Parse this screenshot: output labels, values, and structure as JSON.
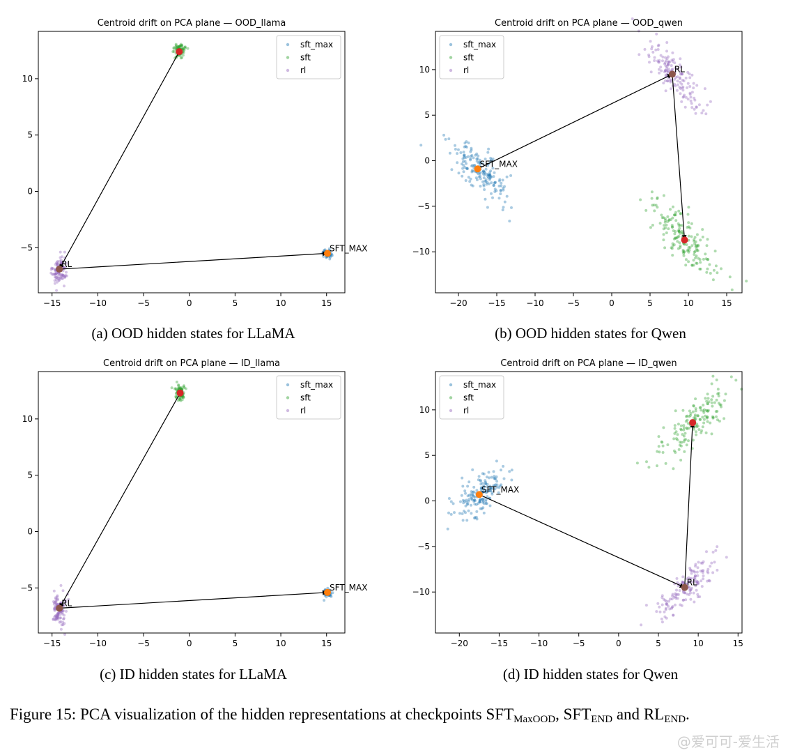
{
  "colors": {
    "sft_max": "#1f77b4",
    "sft": "#2ca02c",
    "rl": "#9467bd",
    "sft_max_centroid": "#ff7f0e",
    "sft_centroid": "#d62728",
    "rl_centroid": "#8c564b",
    "arrow": "#000000"
  },
  "captions": [
    "(a) OOD hidden states for LLaMA",
    "(b) OOD hidden states for Qwen",
    "(c) ID hidden states for LLaMA",
    "(d) ID hidden states for Qwen"
  ],
  "figure_caption": {
    "prefix": "Figure 15: PCA visualization of the hidden representations at checkpoints ",
    "t1": "SFT",
    "s1": "MaxOOD",
    "sep1": ", ",
    "t2": "SFT",
    "s2": "END",
    "sep2": " and ",
    "t3": "RL",
    "s3": "END",
    "end": "."
  },
  "watermark": "@爱可可-爱生活",
  "chart_data": [
    {
      "type": "scatter",
      "title": "Centroid drift on PCA plane — OOD_llama",
      "xlabel": "",
      "ylabel": "",
      "xlim": [
        -16.5,
        17
      ],
      "ylim": [
        -9,
        14.2
      ],
      "xticks": [
        -15,
        -10,
        -5,
        0,
        5,
        10,
        15
      ],
      "yticks": [
        -5,
        0,
        5,
        10
      ],
      "legend": {
        "position": "top-right",
        "entries": [
          "sft_max",
          "sft",
          "rl"
        ]
      },
      "series": [
        {
          "name": "sft_max",
          "cloud": {
            "center": [
              15.1,
              -5.5
            ],
            "spread": [
              0.25,
              0.2
            ],
            "angle": 0,
            "count": 60
          }
        },
        {
          "name": "sft",
          "cloud": {
            "center": [
              -1.1,
              12.5
            ],
            "spread": [
              0.3,
              0.3
            ],
            "angle": 0,
            "count": 80
          }
        },
        {
          "name": "rl",
          "cloud": {
            "center": [
              -14.2,
              -7.0
            ],
            "spread": [
              0.35,
              0.6
            ],
            "angle": 0,
            "count": 110
          }
        }
      ],
      "centroids": [
        {
          "series": "sft_max",
          "x": 15.1,
          "y": -5.5,
          "label": "SFT_MAX"
        },
        {
          "series": "sft",
          "x": -1.1,
          "y": 12.4,
          "label": ""
        },
        {
          "series": "rl",
          "x": -14.2,
          "y": -6.9,
          "label": "RL"
        }
      ],
      "path": [
        [
          -1.1,
          12.4
        ],
        [
          -14.2,
          -6.9
        ],
        [
          15.1,
          -5.5
        ]
      ]
    },
    {
      "type": "scatter",
      "title": "Centroid drift on PCA plane — OOD_qwen",
      "xlabel": "",
      "ylabel": "",
      "xlim": [
        -23,
        17
      ],
      "ylim": [
        -14.5,
        14.2
      ],
      "xticks": [
        -20,
        -15,
        -10,
        -5,
        0,
        5,
        10,
        15
      ],
      "yticks": [
        -10,
        -5,
        0,
        5,
        10
      ],
      "legend": {
        "position": "top-left",
        "entries": [
          "sft_max",
          "sft",
          "rl"
        ]
      },
      "series": [
        {
          "name": "sft_max",
          "cloud": {
            "center": [
              -17.5,
              -1.0
            ],
            "spread": [
              2.3,
              0.9
            ],
            "angle": -38,
            "count": 170
          }
        },
        {
          "name": "sft",
          "cloud": {
            "center": [
              9.3,
              -8.5
            ],
            "spread": [
              2.8,
              0.9
            ],
            "angle": -45,
            "count": 170
          }
        },
        {
          "name": "rl",
          "cloud": {
            "center": [
              8.2,
              9.4
            ],
            "spread": [
              2.6,
              0.8
            ],
            "angle": -45,
            "count": 150
          }
        }
      ],
      "centroids": [
        {
          "series": "sft_max",
          "x": -17.5,
          "y": -0.9,
          "label": "SFT_MAX"
        },
        {
          "series": "sft",
          "x": 9.5,
          "y": -8.7,
          "label": ""
        },
        {
          "series": "rl",
          "x": 7.9,
          "y": 9.5,
          "label": "RL"
        }
      ],
      "path": [
        [
          -17.5,
          -0.9
        ],
        [
          7.9,
          9.5
        ],
        [
          9.5,
          -8.7
        ]
      ]
    },
    {
      "type": "scatter",
      "title": "Centroid drift on PCA plane — ID_llama",
      "xlabel": "",
      "ylabel": "",
      "xlim": [
        -16.5,
        17
      ],
      "ylim": [
        -9,
        14.2
      ],
      "xticks": [
        -15,
        -10,
        -5,
        0,
        5,
        10,
        15
      ],
      "yticks": [
        -5,
        0,
        5,
        10
      ],
      "legend": {
        "position": "top-right",
        "entries": [
          "sft_max",
          "sft",
          "rl"
        ]
      },
      "series": [
        {
          "name": "sft_max",
          "cloud": {
            "center": [
              15.1,
              -5.4
            ],
            "spread": [
              0.25,
              0.2
            ],
            "angle": 0,
            "count": 60
          }
        },
        {
          "name": "sft",
          "cloud": {
            "center": [
              -1.0,
              12.3
            ],
            "spread": [
              0.3,
              0.35
            ],
            "angle": 0,
            "count": 80
          }
        },
        {
          "name": "rl",
          "cloud": {
            "center": [
              -14.2,
              -7.0
            ],
            "spread": [
              0.35,
              0.65
            ],
            "angle": 0,
            "count": 110
          }
        }
      ],
      "centroids": [
        {
          "series": "sft_max",
          "x": 15.1,
          "y": -5.4,
          "label": "SFT_MAX"
        },
        {
          "series": "sft",
          "x": -1.0,
          "y": 12.3,
          "label": ""
        },
        {
          "series": "rl",
          "x": -14.2,
          "y": -6.8,
          "label": "RL"
        }
      ],
      "path": [
        [
          -1.0,
          12.3
        ],
        [
          -14.2,
          -6.8
        ],
        [
          15.1,
          -5.4
        ]
      ]
    },
    {
      "type": "scatter",
      "title": "Centroid drift on PCA plane — ID_qwen",
      "xlabel": "",
      "ylabel": "",
      "xlim": [
        -23,
        15.5
      ],
      "ylim": [
        -14.5,
        14.2
      ],
      "xticks": [
        -20,
        -15,
        -10,
        -5,
        0,
        5,
        10,
        15
      ],
      "yticks": [
        -10,
        -5,
        0,
        5,
        10
      ],
      "legend": {
        "position": "top-left",
        "entries": [
          "sft_max",
          "sft",
          "rl"
        ]
      },
      "series": [
        {
          "name": "sft_max",
          "cloud": {
            "center": [
              -17.5,
              0.8
            ],
            "spread": [
              2.0,
              0.9
            ],
            "angle": 35,
            "count": 160
          }
        },
        {
          "name": "sft",
          "cloud": {
            "center": [
              9.5,
              8.6
            ],
            "spread": [
              2.8,
              0.9
            ],
            "angle": 42,
            "count": 160
          }
        },
        {
          "name": "rl",
          "cloud": {
            "center": [
              8.5,
              -9.5
            ],
            "spread": [
              2.6,
              0.8
            ],
            "angle": 42,
            "count": 150
          }
        }
      ],
      "centroids": [
        {
          "series": "sft_max",
          "x": -17.5,
          "y": 0.7,
          "label": "SFT_MAX"
        },
        {
          "series": "sft",
          "x": 9.3,
          "y": 8.6,
          "label": ""
        },
        {
          "series": "rl",
          "x": 8.3,
          "y": -9.5,
          "label": "RL"
        }
      ],
      "path": [
        [
          -17.5,
          0.7
        ],
        [
          8.3,
          -9.5
        ],
        [
          9.3,
          8.6
        ]
      ]
    }
  ]
}
